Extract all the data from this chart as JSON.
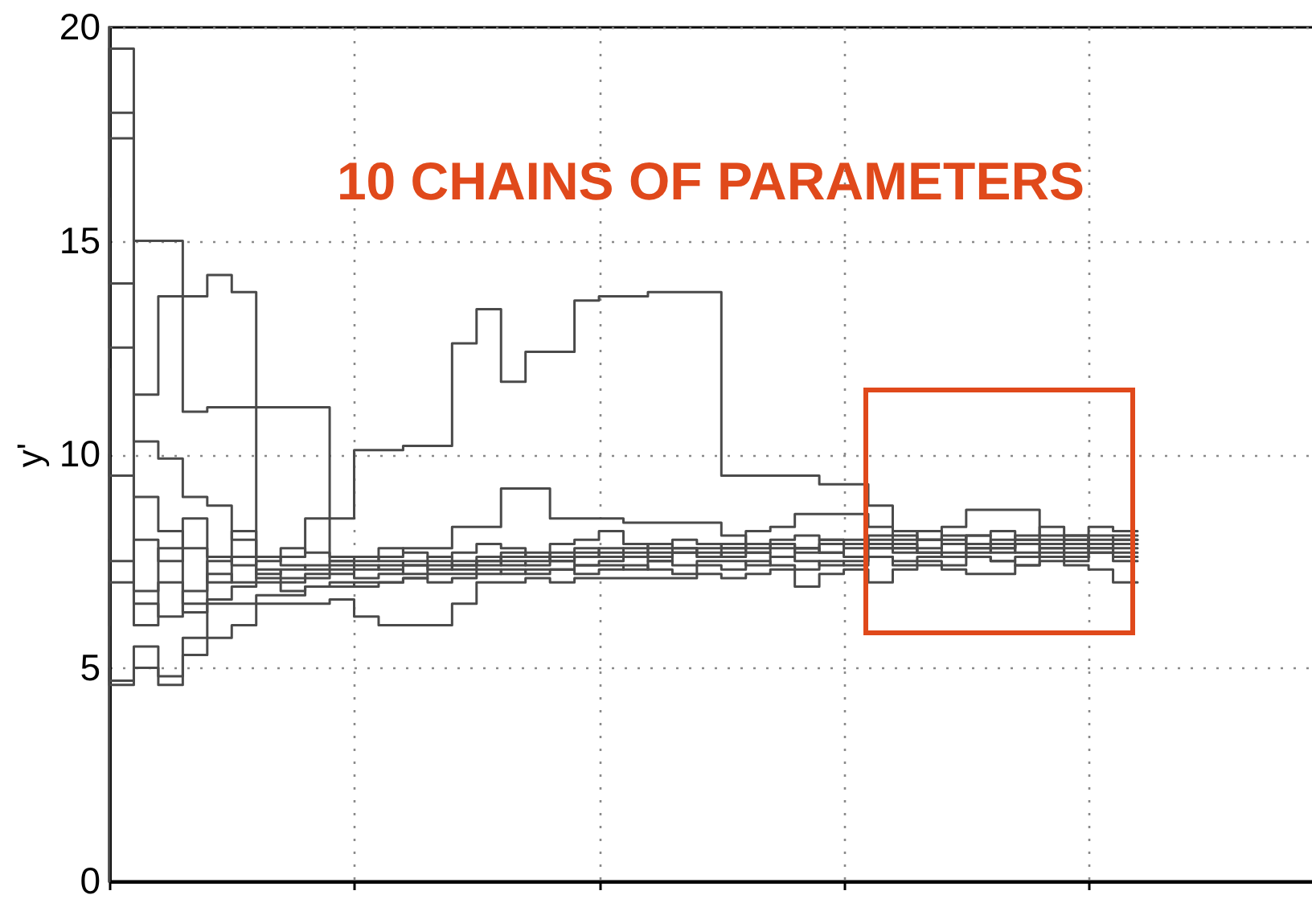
{
  "chart_data": {
    "type": "step",
    "title": "10 CHAINS OF PARAMETERS",
    "ylabel": "y'",
    "categories": [
      null,
      null,
      null,
      null,
      null,
      null,
      null,
      null,
      null,
      null,
      null,
      null,
      null,
      null,
      null,
      null,
      null,
      null,
      null,
      null,
      null,
      null,
      null,
      null,
      null,
      null,
      null,
      null,
      null,
      null,
      null,
      null,
      null,
      null,
      null,
      null,
      null,
      null,
      null,
      null,
      null,
      null,
      null
    ],
    "series": [
      {
        "color": "#4a4a4a",
        "values": [
          19.5,
          17.4,
          15,
          15,
          11,
          11.1,
          11.1,
          11.1,
          11.1,
          11.1,
          8.5,
          10.1,
          10.1,
          10.2,
          10.2,
          12.6,
          13.4,
          11.7,
          12.4,
          12.4,
          13.6,
          13.7,
          13.7,
          13.8,
          13.8,
          13.8,
          9.5,
          9.5,
          9.5,
          9.5,
          9.3,
          9.3,
          8.8,
          8.2,
          8,
          7.9,
          8.1,
          7.8,
          8,
          7.9,
          8.1,
          7.8,
          8
        ]
      },
      {
        "color": "#4a4a4a",
        "values": [
          18,
          14,
          11.4,
          13.7,
          13.7,
          14.2,
          13.8,
          7.2,
          7.3,
          7.4,
          7.5,
          7.3,
          7.4,
          7.5,
          7.6,
          7.4,
          7.5,
          7.7,
          7.6,
          7.5,
          7.7,
          7.8,
          7.6,
          7.7,
          7.8,
          7.6,
          7.8,
          7.7,
          7.9,
          7.8,
          7.7,
          7.9,
          8,
          7.8,
          7.7,
          7.9,
          7.8,
          7.7,
          7.9,
          7.8,
          7.7,
          7.9,
          7.8
        ]
      },
      {
        "color": "#4a4a4a",
        "values": [
          6,
          7,
          8,
          7.5,
          7.8,
          7.6,
          7.4,
          7.5,
          7.6,
          8.5,
          7.6,
          7.5,
          7.6,
          7.8,
          7.8,
          8.3,
          8.3,
          9.2,
          9.2,
          8.5,
          8.5,
          8.5,
          8.4,
          8.4,
          8.4,
          8.4,
          8.1,
          7.9,
          7.8,
          7.7,
          7.9,
          8,
          7.8,
          7.7,
          7.8,
          7.9,
          7.7,
          7.8,
          7.9,
          7.6,
          7.8,
          7.9,
          7.7
        ]
      },
      {
        "color": "#4a4a4a",
        "values": [
          5,
          4.7,
          5,
          4.8,
          5.3,
          6.5,
          6.5,
          6.5,
          6.5,
          6.5,
          6.6,
          6.2,
          6,
          6,
          6,
          6.5,
          7,
          7,
          7.1,
          7,
          7.1,
          7.1,
          7.1,
          7.1,
          7.1,
          7.2,
          7.1,
          7.2,
          7.3,
          6.9,
          7.2,
          7.3,
          7,
          7.3,
          7.4,
          7.3,
          7.2,
          7.2,
          7.4,
          7.5,
          7.4,
          7.3,
          7
        ]
      },
      {
        "color": "#4a4a4a",
        "values": [
          8,
          4.6,
          5.5,
          4.6,
          5.7,
          5.7,
          6,
          6.7,
          6.7,
          6.9,
          6.9,
          7,
          7,
          7.1,
          7.2,
          7.2,
          7.3,
          7.2,
          7.3,
          7.3,
          7.4,
          7.4,
          7.3,
          7.5,
          7.4,
          7.5,
          7.5,
          7.4,
          7.6,
          7.5,
          7.4,
          7.5,
          7.6,
          7.5,
          7.6,
          7.7,
          7.6,
          7.5,
          7.6,
          7.7,
          7.6,
          7.8,
          7.6
        ]
      },
      {
        "color": "#4a4a4a",
        "values": [
          16,
          12.5,
          10.3,
          9.9,
          9,
          8.8,
          8,
          7.6,
          7.8,
          7.7,
          7.5,
          7.6,
          7.8,
          7.7,
          7.6,
          7.7,
          7.9,
          7.8,
          7.6,
          7.9,
          8,
          8.2,
          7.9,
          7.8,
          8,
          7.9,
          7.8,
          8.2,
          8.3,
          8.6,
          8.6,
          8.6,
          8.3,
          8.1,
          8,
          8.3,
          8.7,
          8.7,
          8.7,
          8.1,
          8,
          8.3,
          8.2
        ]
      },
      {
        "color": "#4a4a4a",
        "values": [
          12,
          9.5,
          6,
          7,
          6.3,
          7.2,
          7,
          7.3,
          7.1,
          7.2,
          7.3,
          7.1,
          7.2,
          7.4,
          7.3,
          7.4,
          7.5,
          7.4,
          7.5,
          7.6,
          7.4,
          7.5,
          7.6,
          7.5,
          7.7,
          7.6,
          7.7,
          7.7,
          7.6,
          7.8,
          7.7,
          7.6,
          7.8,
          7.9,
          7.7,
          7.6,
          7.8,
          7.9,
          7.7,
          7.8,
          8,
          7.7,
          7.9
        ]
      },
      {
        "color": "#4a4a4a",
        "values": [
          10,
          7.5,
          6.8,
          7.8,
          8.5,
          7,
          7.6,
          7.1,
          7,
          7.1,
          7.2,
          7.4,
          7.3,
          7.2,
          7.4,
          7.5,
          7.4,
          7.6,
          7.7,
          7.5,
          7.6,
          7.7,
          7.8,
          7.6,
          7.7,
          7.8,
          7.9,
          7.8,
          7.9,
          7.8,
          8,
          7.9,
          7.9,
          7.8,
          8,
          8.1,
          7.9,
          8,
          8.1,
          8,
          7.9,
          8.1,
          8
        ]
      },
      {
        "color": "#4a4a4a",
        "values": [
          20,
          18,
          6.5,
          6.2,
          6.8,
          7.5,
          8.2,
          7.6,
          7.4,
          7.3,
          7.4,
          7.6,
          7.5,
          7.4,
          7.5,
          7.3,
          7.6,
          7.5,
          7.4,
          7.7,
          7.8,
          7.6,
          7.7,
          7.9,
          7.8,
          7.7,
          7.6,
          7.9,
          8,
          8.1,
          8,
          7.8,
          8.1,
          8,
          8.2,
          8,
          8.1,
          8.2,
          8,
          8.3,
          8.1,
          8,
          8.1
        ]
      },
      {
        "color": "#4a4a4a",
        "values": [
          0,
          19.5,
          9,
          8.2,
          6.5,
          6.6,
          6.9,
          7,
          6.8,
          6.9,
          7,
          6.9,
          7,
          7.1,
          7,
          7.1,
          7.2,
          7.3,
          7.2,
          7.3,
          7.2,
          7.3,
          7.4,
          7.3,
          7.2,
          7.4,
          7.3,
          7.5,
          7.4,
          7.3,
          7.5,
          7.4,
          7.6,
          7.4,
          7.5,
          7.4,
          7.6,
          7.5,
          7.4,
          7.6,
          7.5,
          7.7,
          7.5
        ]
      }
    ],
    "ylim": [
      0,
      20
    ],
    "yticks": [
      0,
      5,
      10,
      15,
      20
    ],
    "grid": true,
    "tick_labels": "y"
  }
}
